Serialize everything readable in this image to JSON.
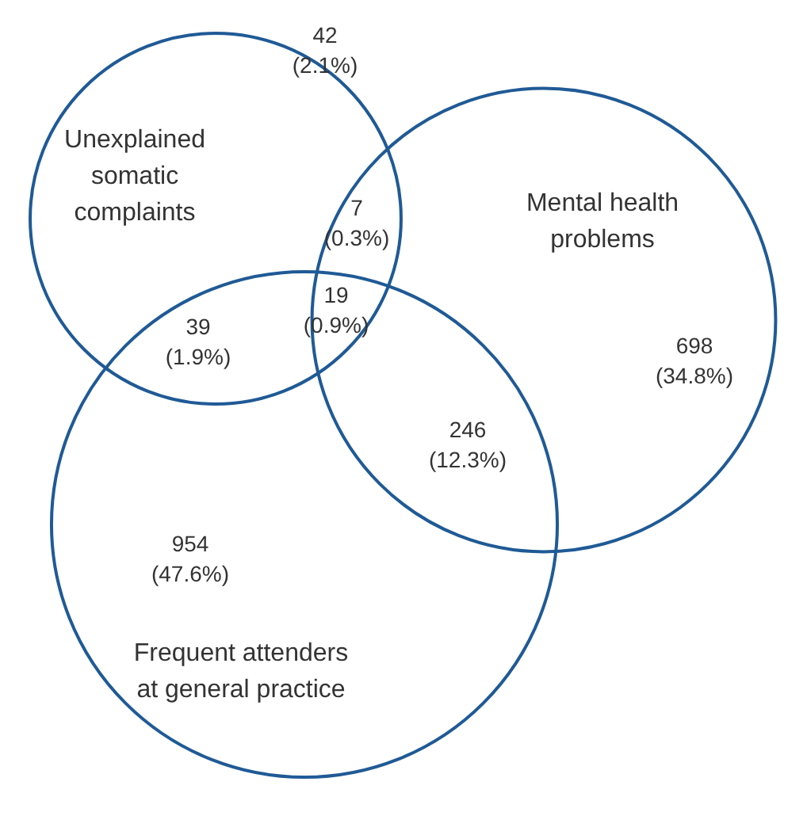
{
  "chart_data": {
    "type": "other",
    "color": "#1f5a96",
    "categories": [
      null,
      null,
      null,
      null,
      null,
      null,
      null
    ],
    "values": [
      42,
      7,
      19,
      39,
      698,
      246,
      954
    ],
    "data_labels": true,
    "annotations": [
      "Unexplained\nsomatic\ncomplaints",
      "Mental health\nproblems",
      "Frequent attenders\nat general practice",
      "(2.1%)",
      "(0.3%)",
      "(0.9%)",
      "(1.9%)",
      "(34.8%)",
      "(12.3%)",
      "(47.6%)"
    ]
  }
}
